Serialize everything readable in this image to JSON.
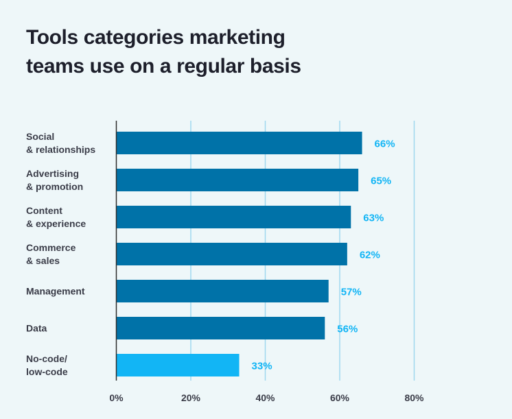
{
  "title_lines": [
    "Tools categories marketing",
    "teams use on a regular basis"
  ],
  "colors": {
    "background": "#eef7f9",
    "bar": "#0072a8",
    "bar_highlight": "#12b5f5",
    "value_label": "#12b5f5",
    "gridline": "#9fd8ef",
    "axis": "#2b2b2b",
    "text": "#3a3c48"
  },
  "chart_data": {
    "type": "bar",
    "orientation": "horizontal",
    "title": "Tools categories marketing teams use on a regular basis",
    "categories": [
      [
        "Social",
        "& relationships"
      ],
      [
        "Advertising",
        "& promotion"
      ],
      [
        "Content",
        "& experience"
      ],
      [
        "Commerce",
        "& sales"
      ],
      [
        "Management"
      ],
      [
        "Data"
      ],
      [
        "No-code/",
        "low-code"
      ]
    ],
    "values": [
      66,
      65,
      63,
      62,
      57,
      56,
      33
    ],
    "value_labels": [
      "66%",
      "65%",
      "63%",
      "62%",
      "57%",
      "56%",
      "33%"
    ],
    "highlight_index": 6,
    "xlim": [
      0,
      80
    ],
    "xticks": [
      0,
      20,
      40,
      60,
      80
    ],
    "xtick_labels": [
      "0%",
      "20%",
      "40%",
      "60%",
      "80%"
    ],
    "grid": true,
    "xlabel": "",
    "ylabel": ""
  }
}
